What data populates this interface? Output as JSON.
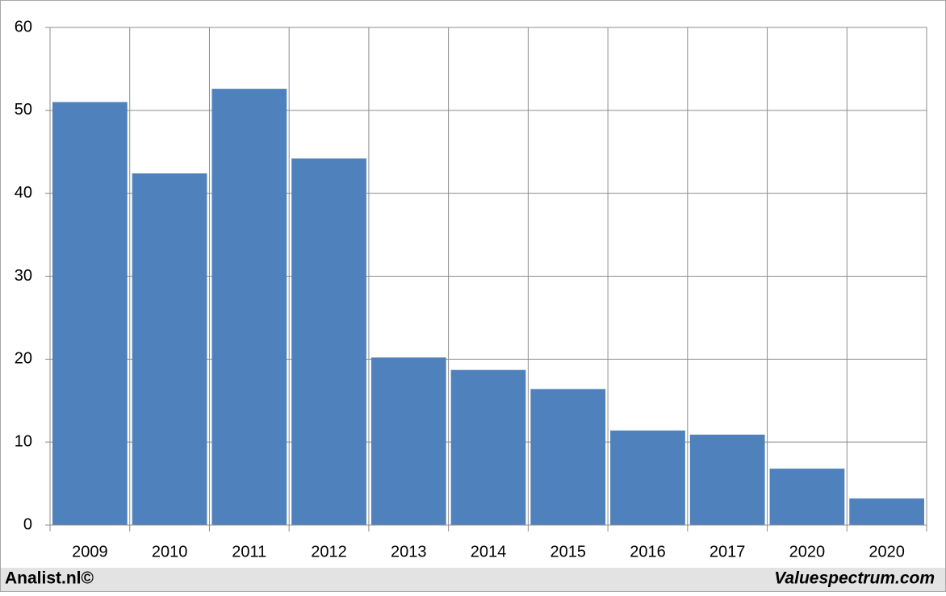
{
  "chart_data": {
    "type": "bar",
    "categories": [
      "2009",
      "2010",
      "2011",
      "2012",
      "2013",
      "2014",
      "2015",
      "2016",
      "2017",
      "2020",
      "2020"
    ],
    "values": [
      51,
      42.4,
      52.6,
      44.2,
      20.2,
      18.7,
      16.4,
      11.4,
      10.9,
      6.8,
      3.2
    ],
    "color": "#4f81bd",
    "ylim": [
      0,
      60
    ],
    "yticks": [
      0,
      10,
      20,
      30,
      40,
      50,
      60
    ],
    "grid": true,
    "credits": [
      "Analist.nl©",
      "Valuespectrum.com"
    ]
  }
}
